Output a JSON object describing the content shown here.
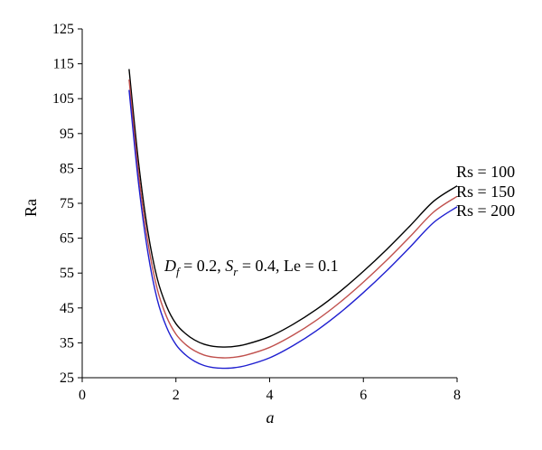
{
  "chart_data": {
    "type": "line",
    "title": "",
    "xlabel": "a",
    "ylabel": "Ra",
    "xlim": [
      0,
      8
    ],
    "ylim": [
      25,
      125
    ],
    "xticks": [
      0,
      2,
      4,
      6,
      8
    ],
    "yticks": [
      25,
      35,
      45,
      55,
      65,
      75,
      85,
      95,
      105,
      115,
      125
    ],
    "grid": false,
    "annotation": {
      "D": "D",
      "f": "f",
      "df_value": " = 0.2, ",
      "S": "S",
      "r": "r",
      "sr_value": " = 0.4, Le = 0.1"
    },
    "series": [
      {
        "name": "Rs = 100",
        "color": "#000000",
        "x": [
          1.0,
          1.2,
          1.4,
          1.6,
          1.8,
          2.0,
          2.2,
          2.4,
          2.6,
          2.8,
          3.0,
          3.2,
          3.5,
          4.0,
          4.5,
          5.0,
          5.5,
          6.0,
          6.5,
          7.0,
          7.5,
          8.0
        ],
        "y": [
          113.5,
          87.0,
          67.0,
          53.5,
          45.5,
          40.5,
          37.7,
          35.8,
          34.6,
          34.0,
          33.8,
          33.9,
          34.6,
          36.8,
          40.3,
          44.6,
          49.7,
          55.5,
          61.8,
          68.6,
          75.6,
          80.0
        ]
      },
      {
        "name": "Rs = 150",
        "color": "#c0504d",
        "x": [
          1.0,
          1.2,
          1.4,
          1.6,
          1.8,
          2.0,
          2.2,
          2.4,
          2.6,
          2.8,
          3.0,
          3.2,
          3.5,
          4.0,
          4.5,
          5.0,
          5.5,
          6.0,
          6.5,
          7.0,
          7.5,
          8.0
        ],
        "y": [
          110.5,
          84.0,
          64.0,
          50.5,
          42.5,
          37.5,
          34.6,
          32.7,
          31.5,
          30.9,
          30.7,
          30.8,
          31.5,
          33.7,
          37.2,
          41.5,
          46.6,
          52.4,
          58.7,
          65.5,
          72.5,
          77.0
        ]
      },
      {
        "name": "Rs = 200",
        "color": "#1f1fd0",
        "x": [
          1.0,
          1.2,
          1.4,
          1.6,
          1.8,
          2.0,
          2.2,
          2.4,
          2.6,
          2.8,
          3.0,
          3.2,
          3.5,
          4.0,
          4.5,
          5.0,
          5.5,
          6.0,
          6.5,
          7.0,
          7.5,
          8.0
        ],
        "y": [
          107.5,
          81.0,
          61.0,
          47.5,
          39.5,
          34.5,
          31.6,
          29.7,
          28.5,
          27.9,
          27.7,
          27.8,
          28.5,
          30.7,
          34.2,
          38.5,
          43.6,
          49.4,
          55.7,
          62.5,
          69.5,
          74.0
        ]
      }
    ]
  }
}
